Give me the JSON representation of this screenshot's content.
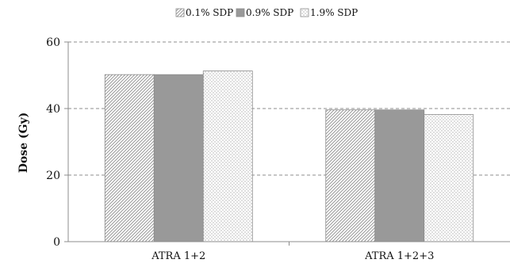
{
  "chart_data": {
    "type": "bar",
    "title": "",
    "xlabel": "",
    "ylabel": "Dose (Gy)",
    "ylim": [
      0,
      60
    ],
    "yticks": [
      0,
      20,
      40,
      60
    ],
    "grid": "horizontal dashed",
    "legend_position": "top",
    "categories": [
      "ATRA 1+2",
      "ATRA 1+2+3"
    ],
    "series": [
      {
        "name": "0.1% SDP",
        "values": [
          50.2,
          39.6
        ],
        "fill": "diagonal-hatch"
      },
      {
        "name": "0.9% SDP",
        "values": [
          50.2,
          39.6
        ],
        "fill": "solid-gray"
      },
      {
        "name": "1.9% SDP",
        "values": [
          51.3,
          38.2
        ],
        "fill": "dotted"
      }
    ],
    "colors": {
      "hatch": "#8c8c8c",
      "solid": "#999999",
      "dots": "#8f8f8f",
      "grid": "#8c8c8c",
      "axis": "#8c8c8c"
    }
  }
}
